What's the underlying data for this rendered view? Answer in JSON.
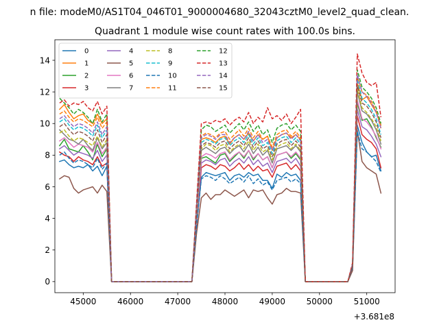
{
  "figure": {
    "suptitle": "n file: modeM0/AS1T04_046T01_9000004680_32043cztM0_level2_quad_clean.",
    "offset_text": "+3.681e8"
  },
  "chart_data": {
    "type": "line",
    "title": "Quadrant 1 module wise count rates with 100.0s bins.",
    "xlabel": "",
    "ylabel": "",
    "x_offset": 368100000,
    "xlim": [
      44400,
      51600
    ],
    "ylim": [
      -0.7,
      15.3
    ],
    "xticks": [
      45000,
      46000,
      47000,
      48000,
      49000,
      50000,
      51000
    ],
    "yticks": [
      0,
      2,
      4,
      6,
      8,
      10,
      12,
      14
    ],
    "grid": false,
    "legend_position": "upper-left",
    "legend_columns": 4,
    "x": [
      44500,
      44600,
      44700,
      44800,
      44900,
      45000,
      45100,
      45200,
      45300,
      45400,
      45500,
      45600,
      45700,
      45800,
      45900,
      46000,
      46100,
      46200,
      46300,
      46400,
      46500,
      46600,
      46700,
      46800,
      46900,
      47000,
      47100,
      47200,
      47300,
      47400,
      47500,
      47600,
      47700,
      47800,
      47900,
      48000,
      48100,
      48200,
      48300,
      48400,
      48500,
      48600,
      48700,
      48800,
      48900,
      49000,
      49100,
      49200,
      49300,
      49400,
      49500,
      49600,
      49700,
      49800,
      49900,
      50000,
      50100,
      50200,
      50300,
      50400,
      50500,
      50600,
      50700,
      50800,
      50900,
      51000,
      51100,
      51200,
      51300
    ],
    "series": [
      {
        "name": "0",
        "color": "#1f77b4",
        "dash": false,
        "values": [
          7.6,
          7.7,
          7.4,
          7.2,
          7.3,
          7.2,
          7.4,
          7.0,
          7.3,
          6.7,
          7.3,
          0.0,
          0,
          0,
          0,
          0,
          0,
          0,
          0,
          0,
          0,
          0,
          0,
          0,
          0,
          0,
          0,
          0,
          0,
          3.6,
          6.6,
          6.9,
          6.8,
          6.7,
          6.8,
          6.9,
          6.4,
          6.7,
          6.8,
          6.6,
          6.9,
          6.7,
          6.8,
          6.4,
          6.4,
          5.9,
          6.8,
          6.6,
          6.9,
          6.7,
          6.8,
          6.4,
          0.0,
          0,
          0,
          0,
          0,
          0,
          0,
          0,
          0,
          0,
          0.9,
          9.9,
          8.8,
          8.2,
          7.9,
          8.0,
          7.0
        ]
      },
      {
        "name": "1",
        "color": "#ff7f0e",
        "dash": false,
        "values": [
          10.9,
          11.2,
          10.7,
          10.3,
          10.5,
          10.6,
          10.2,
          10.0,
          10.6,
          10.0,
          10.3,
          0.0,
          0,
          0,
          0,
          0,
          0,
          0,
          0,
          0,
          0,
          0,
          0,
          0,
          0,
          0,
          0,
          0,
          0,
          4.5,
          9.0,
          9.1,
          9.0,
          8.8,
          9.1,
          9.2,
          8.7,
          9.1,
          9.3,
          9.0,
          9.4,
          8.9,
          9.3,
          9.0,
          9.2,
          8.3,
          9.1,
          9.3,
          9.4,
          9.1,
          9.3,
          9.0,
          0.0,
          0,
          0,
          0,
          0,
          0,
          0,
          0,
          0,
          0,
          1.1,
          12.6,
          11.5,
          11.7,
          11.2,
          10.7,
          9.9
        ]
      },
      {
        "name": "2",
        "color": "#2ca02c",
        "dash": false,
        "values": [
          8.6,
          9.0,
          8.4,
          8.3,
          8.2,
          8.6,
          8.2,
          7.7,
          8.7,
          7.9,
          8.4,
          0.0,
          0,
          0,
          0,
          0,
          0,
          0,
          0,
          0,
          0,
          0,
          0,
          0,
          0,
          0,
          0,
          0,
          0,
          3.9,
          7.8,
          7.9,
          7.7,
          7.5,
          8.0,
          8.1,
          7.6,
          7.9,
          8.2,
          7.8,
          8.3,
          7.7,
          8.1,
          7.7,
          7.9,
          7.2,
          8.0,
          8.1,
          8.2,
          7.8,
          8.1,
          7.7,
          0.0,
          0,
          0,
          0,
          0,
          0,
          0,
          0,
          0,
          0,
          1.0,
          11.3,
          10.2,
          10.3,
          9.8,
          9.1,
          8.5
        ]
      },
      {
        "name": "3",
        "color": "#d62728",
        "dash": false,
        "values": [
          8.2,
          8.0,
          7.9,
          7.6,
          7.9,
          7.7,
          7.6,
          7.4,
          7.9,
          7.3,
          7.5,
          0.0,
          0,
          0,
          0,
          0,
          0,
          0,
          0,
          0,
          0,
          0,
          0,
          0,
          0,
          0,
          0,
          0,
          0,
          3.7,
          7.2,
          7.4,
          7.3,
          7.1,
          7.4,
          7.3,
          7.0,
          7.2,
          7.5,
          7.1,
          7.4,
          7.0,
          7.3,
          7.0,
          7.1,
          6.6,
          7.3,
          7.4,
          7.5,
          7.1,
          7.4,
          7.0,
          0.0,
          0,
          0,
          0,
          0,
          0,
          0,
          0,
          0,
          0,
          1.0,
          10.5,
          9.3,
          9.0,
          8.8,
          8.4,
          7.2
        ]
      },
      {
        "name": "4",
        "color": "#9467bd",
        "dash": false,
        "values": [
          8.4,
          8.6,
          8.3,
          8.0,
          8.2,
          8.1,
          8.0,
          7.8,
          8.3,
          7.6,
          8.0,
          0.0,
          0,
          0,
          0,
          0,
          0,
          0,
          0,
          0,
          0,
          0,
          0,
          0,
          0,
          0,
          0,
          0,
          0,
          3.8,
          7.5,
          7.7,
          7.6,
          7.4,
          7.7,
          7.8,
          7.3,
          7.6,
          7.8,
          7.5,
          7.9,
          7.4,
          7.7,
          7.3,
          7.5,
          6.9,
          7.6,
          7.7,
          7.8,
          7.5,
          7.8,
          7.3,
          0.0,
          0,
          0,
          0,
          0,
          0,
          0,
          0,
          0,
          0,
          1.0,
          10.9,
          9.8,
          9.6,
          9.2,
          8.7,
          7.9
        ]
      },
      {
        "name": "5",
        "color": "#8c564b",
        "dash": false,
        "values": [
          6.5,
          6.7,
          6.6,
          5.9,
          5.6,
          5.8,
          5.9,
          6.0,
          5.6,
          6.1,
          5.7,
          0.0,
          0,
          0,
          0,
          0,
          0,
          0,
          0,
          0,
          0,
          0,
          0,
          0,
          0,
          0,
          0,
          0,
          0,
          3.1,
          5.3,
          5.6,
          5.2,
          5.5,
          5.5,
          5.8,
          5.6,
          5.4,
          5.6,
          5.8,
          5.3,
          5.8,
          5.7,
          5.8,
          5.3,
          4.9,
          5.5,
          5.6,
          5.9,
          5.7,
          5.7,
          5.6,
          0.0,
          0,
          0,
          0,
          0,
          0,
          0,
          0,
          0,
          0,
          0.7,
          9.6,
          7.6,
          7.2,
          7.0,
          6.8,
          5.6
        ]
      },
      {
        "name": "6",
        "color": "#e377c2",
        "dash": false,
        "values": [
          8.9,
          9.1,
          8.8,
          8.5,
          8.7,
          8.6,
          8.5,
          8.2,
          8.8,
          8.1,
          8.5,
          0.0,
          0,
          0,
          0,
          0,
          0,
          0,
          0,
          0,
          0,
          0,
          0,
          0,
          0,
          0,
          0,
          0,
          0,
          4.0,
          7.9,
          8.1,
          8.0,
          7.8,
          8.1,
          8.2,
          7.7,
          8.0,
          8.2,
          7.9,
          8.3,
          7.8,
          8.1,
          7.7,
          7.9,
          7.2,
          8.0,
          8.1,
          8.2,
          7.9,
          8.2,
          7.8,
          0.0,
          0,
          0,
          0,
          0,
          0,
          0,
          0,
          0,
          0,
          1.0,
          11.5,
          10.3,
          10.1,
          9.7,
          9.2,
          8.4
        ]
      },
      {
        "name": "7",
        "color": "#7f7f7f",
        "dash": false,
        "values": [
          9.6,
          9.3,
          9.0,
          8.9,
          8.7,
          9.0,
          8.6,
          8.3,
          9.1,
          8.4,
          8.8,
          0.0,
          0,
          0,
          0,
          0,
          0,
          0,
          0,
          0,
          0,
          0,
          0,
          0,
          0,
          0,
          0,
          0,
          0,
          4.3,
          8.3,
          8.5,
          8.3,
          8.1,
          8.4,
          8.5,
          8.1,
          8.4,
          8.6,
          8.2,
          8.7,
          8.1,
          8.5,
          8.0,
          8.3,
          7.5,
          8.4,
          8.5,
          8.6,
          8.3,
          8.6,
          8.2,
          0.0,
          0,
          0,
          0,
          0,
          0,
          0,
          0,
          0,
          0,
          1.0,
          12.0,
          10.8,
          10.6,
          10.2,
          9.6,
          8.7
        ]
      },
      {
        "name": "8",
        "color": "#bcbd22",
        "dash": true,
        "values": [
          9.4,
          9.6,
          9.2,
          8.9,
          9.1,
          9.0,
          8.8,
          8.6,
          9.2,
          8.5,
          9.0,
          0.0,
          0,
          0,
          0,
          0,
          0,
          0,
          0,
          0,
          0,
          0,
          0,
          0,
          0,
          0,
          0,
          0,
          0,
          4.2,
          8.4,
          8.7,
          8.6,
          8.3,
          8.6,
          8.7,
          8.2,
          8.5,
          8.7,
          8.4,
          8.9,
          8.3,
          8.7,
          8.2,
          8.4,
          7.7,
          8.5,
          8.7,
          8.8,
          8.4,
          8.7,
          8.3,
          0.0,
          0,
          0,
          0,
          0,
          0,
          0,
          0,
          0,
          0,
          1.0,
          12.2,
          11.0,
          10.7,
          10.3,
          9.8,
          8.9
        ]
      },
      {
        "name": "9",
        "color": "#17becf",
        "dash": true,
        "values": [
          10.1,
          10.3,
          9.9,
          9.6,
          9.8,
          9.7,
          9.5,
          9.2,
          9.9,
          9.1,
          9.6,
          0.0,
          0,
          0,
          0,
          0,
          0,
          0,
          0,
          0,
          0,
          0,
          0,
          0,
          0,
          0,
          0,
          0,
          0,
          4.5,
          8.8,
          9.0,
          8.9,
          8.7,
          9.0,
          9.1,
          8.6,
          8.9,
          9.1,
          8.8,
          9.3,
          8.7,
          9.1,
          8.6,
          8.8,
          8.1,
          8.9,
          9.1,
          9.2,
          8.8,
          9.1,
          8.7,
          0.0,
          0,
          0,
          0,
          0,
          0,
          0,
          0,
          0,
          0,
          1.1,
          12.8,
          11.6,
          11.3,
          10.9,
          10.3,
          9.3
        ]
      },
      {
        "name": "10",
        "color": "#1f77b4",
        "dash": true,
        "values": [
          8.0,
          8.2,
          7.8,
          7.5,
          7.7,
          7.6,
          7.4,
          7.2,
          7.8,
          7.1,
          7.5,
          0.0,
          0,
          0,
          0,
          0,
          0,
          0,
          0,
          0,
          0,
          0,
          0,
          0,
          0,
          0,
          0,
          0,
          0,
          3.6,
          6.5,
          6.7,
          6.6,
          6.4,
          6.7,
          6.5,
          6.2,
          6.4,
          6.6,
          6.3,
          6.7,
          6.2,
          6.5,
          6.1,
          6.3,
          5.8,
          6.4,
          6.5,
          6.6,
          6.3,
          6.5,
          6.2,
          0.0,
          0,
          0,
          0,
          0,
          0,
          0,
          0,
          0,
          0,
          0.9,
          9.5,
          8.4,
          8.2,
          7.9,
          7.6,
          6.9
        ]
      },
      {
        "name": "11",
        "color": "#ff7f0e",
        "dash": true,
        "values": [
          10.6,
          10.8,
          10.4,
          10.1,
          10.3,
          10.2,
          10.0,
          9.8,
          10.4,
          9.7,
          10.1,
          0.0,
          0,
          0,
          0,
          0,
          0,
          0,
          0,
          0,
          0,
          0,
          0,
          0,
          0,
          0,
          0,
          0,
          0,
          4.7,
          9.2,
          9.4,
          9.3,
          9.1,
          9.4,
          9.5,
          9.0,
          9.3,
          9.6,
          9.2,
          9.7,
          9.1,
          9.5,
          9.0,
          9.2,
          8.5,
          9.3,
          9.5,
          9.6,
          9.2,
          9.5,
          9.1,
          0.0,
          0,
          0,
          0,
          0,
          0,
          0,
          0,
          0,
          0,
          1.1,
          13.0,
          12.0,
          11.8,
          11.4,
          10.8,
          9.7
        ]
      },
      {
        "name": "12",
        "color": "#2ca02c",
        "dash": true,
        "values": [
          11.6,
          11.3,
          11.0,
          10.6,
          10.9,
          10.7,
          10.4,
          10.0,
          10.9,
          10.1,
          10.6,
          0.0,
          0,
          0,
          0,
          0,
          0,
          0,
          0,
          0,
          0,
          0,
          0,
          0,
          0,
          0,
          0,
          0,
          0,
          4.9,
          9.6,
          9.9,
          9.8,
          9.5,
          9.7,
          9.9,
          9.4,
          9.7,
          10.0,
          9.6,
          10.1,
          9.5,
          9.9,
          9.3,
          9.6,
          8.8,
          9.7,
          9.9,
          10.0,
          9.6,
          9.9,
          9.5,
          0.0,
          0,
          0,
          0,
          0,
          0,
          0,
          0,
          0,
          0,
          1.1,
          13.4,
          12.3,
          12.0,
          11.6,
          11.0,
          10.0
        ]
      },
      {
        "name": "13",
        "color": "#d62728",
        "dash": true,
        "values": [
          11.3,
          11.5,
          11.1,
          11.3,
          11.2,
          11.4,
          11.0,
          10.8,
          11.4,
          10.6,
          11.1,
          0.0,
          0,
          0,
          0,
          0,
          0,
          0,
          0,
          0,
          0,
          0,
          0,
          0,
          0,
          0,
          0,
          0,
          0,
          5.1,
          10.0,
          10.1,
          10.0,
          10.2,
          10.1,
          10.3,
          9.9,
          10.2,
          10.4,
          10.1,
          10.7,
          10.0,
          10.4,
          10.1,
          11.0,
          10.3,
          10.5,
          10.2,
          10.6,
          10.0,
          10.4,
          10.9,
          0.0,
          0,
          0,
          0,
          0,
          0,
          0,
          0,
          0,
          0,
          1.2,
          14.4,
          13.2,
          12.6,
          12.4,
          12.6,
          10.4
        ]
      },
      {
        "name": "14",
        "color": "#9467bd",
        "dash": true,
        "values": [
          10.3,
          10.5,
          10.1,
          9.8,
          10.0,
          9.9,
          9.7,
          9.4,
          10.1,
          9.3,
          9.8,
          0.0,
          0,
          0,
          0,
          0,
          0,
          0,
          0,
          0,
          0,
          0,
          0,
          0,
          0,
          0,
          0,
          0,
          0,
          4.6,
          9.1,
          9.3,
          9.2,
          9.0,
          9.3,
          9.3,
          8.8,
          9.1,
          9.3,
          9.0,
          9.5,
          8.9,
          9.3,
          8.8,
          9.0,
          8.3,
          9.1,
          9.3,
          9.4,
          9.0,
          9.3,
          8.9,
          0.0,
          0,
          0,
          0,
          0,
          0,
          0,
          0,
          0,
          0,
          1.1,
          13.1,
          12.0,
          11.7,
          11.3,
          10.7,
          9.7
        ]
      },
      {
        "name": "15",
        "color": "#8c564b",
        "dash": true,
        "values": [
          9.8,
          10.0,
          9.6,
          9.3,
          9.5,
          9.4,
          9.2,
          8.9,
          9.6,
          8.8,
          9.3,
          0.0,
          0,
          0,
          0,
          0,
          0,
          0,
          0,
          0,
          0,
          0,
          0,
          0,
          0,
          0,
          0,
          0,
          0,
          4.4,
          8.6,
          8.8,
          8.7,
          8.5,
          8.8,
          8.9,
          8.4,
          8.7,
          8.9,
          8.6,
          9.1,
          8.5,
          8.9,
          8.4,
          8.6,
          7.9,
          8.7,
          8.9,
          9.0,
          8.6,
          8.9,
          8.5,
          0.0,
          0,
          0,
          0,
          0,
          0,
          0,
          0,
          0,
          0,
          1.0,
          12.4,
          11.3,
          11.1,
          10.7,
          10.1,
          9.1
        ]
      }
    ]
  }
}
